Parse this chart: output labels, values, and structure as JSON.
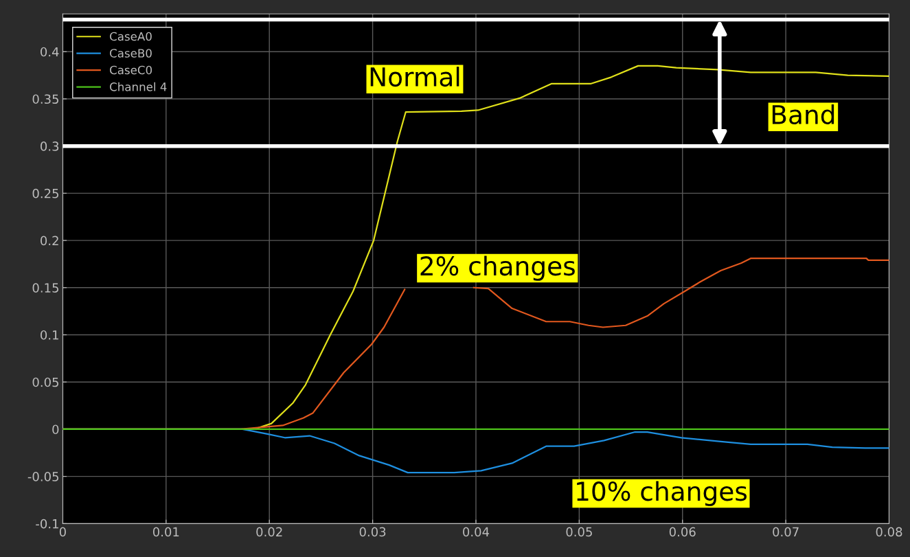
{
  "chart_data": {
    "type": "line",
    "annotations": [
      "Normal",
      "2% changes",
      "10% changes",
      "Band"
    ],
    "series": [
      {
        "name": "CaseA0",
        "color": "#e0e01a",
        "x": [
          0,
          0.0175,
          0.0188,
          0.0202,
          0.0223,
          0.0235,
          0.0259,
          0.0281,
          0.0301,
          0.0324,
          0.0332,
          0.0386,
          0.0402,
          0.0443,
          0.0473,
          0.0511,
          0.0531,
          0.0557,
          0.0576,
          0.0594,
          0.0634,
          0.0666,
          0.0729,
          0.076,
          0.08
        ],
        "values": [
          0,
          0,
          0.001,
          0.006,
          0.028,
          0.047,
          0.1,
          0.146,
          0.2,
          0.305,
          0.336,
          0.337,
          0.338,
          0.351,
          0.366,
          0.366,
          0.373,
          0.385,
          0.385,
          0.383,
          0.381,
          0.378,
          0.378,
          0.375,
          0.374
        ]
      },
      {
        "name": "CaseB0",
        "color": "#1e8fe0",
        "x": [
          0,
          0.0174,
          0.0198,
          0.0215,
          0.0239,
          0.0263,
          0.0287,
          0.0316,
          0.0334,
          0.0379,
          0.0405,
          0.0435,
          0.0468,
          0.0495,
          0.0524,
          0.0554,
          0.0566,
          0.0599,
          0.0637,
          0.0666,
          0.0721,
          0.0745,
          0.0777,
          0.08
        ],
        "values": [
          0,
          0,
          -0.005,
          -0.009,
          -0.007,
          -0.015,
          -0.028,
          -0.038,
          -0.046,
          -0.046,
          -0.044,
          -0.036,
          -0.018,
          -0.018,
          -0.012,
          -0.003,
          -0.003,
          -0.009,
          -0.013,
          -0.016,
          -0.016,
          -0.019,
          -0.02,
          -0.02
        ]
      },
      {
        "name": "CaseC0",
        "color": "#e2581e",
        "x": [
          0,
          0.0172,
          0.0213,
          0.0233,
          0.0242,
          0.0272,
          0.0299,
          0.0311,
          0.0331,
          0.036,
          0.0398,
          0.0412,
          0.0435,
          0.0468,
          0.0491,
          0.0509,
          0.0523,
          0.0545,
          0.0566,
          0.0582,
          0.0602,
          0.0617,
          0.0637,
          0.0657,
          0.0666,
          0.0778,
          0.078,
          0.08
        ],
        "values": [
          0,
          0,
          0.004,
          0.012,
          0.017,
          0.06,
          0.09,
          0.108,
          0.148,
          null,
          0.15,
          0.149,
          0.128,
          0.114,
          0.114,
          0.11,
          0.108,
          0.11,
          0.12,
          0.133,
          0.146,
          0.156,
          0.168,
          0.176,
          0.181,
          0.181,
          0.179,
          0.179
        ]
      },
      {
        "name": "Channel 4",
        "color": "#4cc21a",
        "x": [
          0,
          0.08
        ],
        "values": [
          0,
          0
        ]
      }
    ],
    "ref_lines": [
      {
        "axis": "y",
        "value": 0.434,
        "color": "#ffffff"
      },
      {
        "axis": "y",
        "value": 0.3,
        "color": "#ffffff"
      }
    ],
    "xlim": [
      0,
      0.08
    ],
    "xticks": [
      0,
      0.01,
      0.02,
      0.03,
      0.04,
      0.05,
      0.06,
      0.07,
      0.08
    ],
    "ylim": [
      -0.1,
      0.44
    ],
    "yticks": [
      -0.1,
      -0.05,
      0,
      0.05,
      0.1,
      0.15,
      0.2,
      0.25,
      0.3,
      0.35,
      0.4
    ],
    "grid": true,
    "legend": "top left",
    "marker": "none",
    "line_style": "solid"
  }
}
